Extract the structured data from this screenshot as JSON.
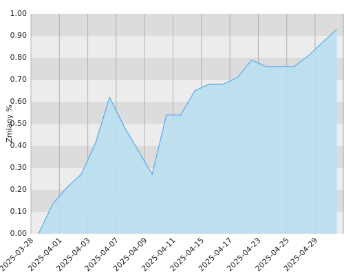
{
  "chart_data": {
    "type": "area",
    "y_label": "Zmiany %",
    "categories": [
      "2025-03-28",
      null,
      "2025-04-01",
      null,
      "2025-04-03",
      null,
      "2025-04-07",
      null,
      "2025-04-09",
      null,
      "2025-04-11",
      null,
      "2025-04-15",
      null,
      "2025-04-17",
      null,
      "2025-04-23",
      null,
      "2025-04-25",
      null,
      "2025-04-29",
      null
    ],
    "values": [
      0.0,
      0.135,
      0.21,
      0.27,
      0.41,
      0.62,
      0.49,
      0.38,
      0.27,
      0.54,
      0.54,
      0.65,
      0.68,
      0.68,
      0.71,
      0.79,
      0.76,
      0.76,
      0.76,
      0.81,
      0.87,
      0.93
    ],
    "color": "#5aa9e6",
    "fill": "#b9dff0",
    "ylim": [
      0,
      1
    ],
    "yticks": [
      {
        "value": 0,
        "label": "0.00"
      },
      {
        "value": 0.1,
        "label": "0.10"
      },
      {
        "value": 0.2,
        "label": "0.20"
      },
      {
        "value": 0.3,
        "label": "0.30"
      },
      {
        "value": 0.4,
        "label": "0.40"
      },
      {
        "value": 0.5,
        "label": "0.50"
      },
      {
        "value": 0.6,
        "label": "0.60"
      },
      {
        "value": 0.7,
        "label": "0.70"
      },
      {
        "value": 0.8,
        "label": "0.80"
      },
      {
        "value": 0.9,
        "label": "0.90"
      },
      {
        "value": 1,
        "label": "1.00"
      }
    ],
    "grid": true
  }
}
